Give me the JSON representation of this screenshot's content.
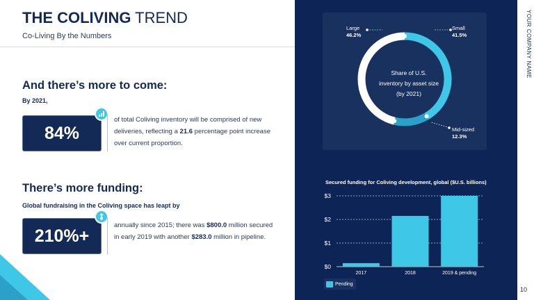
{
  "header": {
    "title_bold": "THE COLIVING",
    "title_light": " TREND",
    "subtitle": "Co-Living By the Numbers"
  },
  "company_name": "YOUR COMPANY NAME",
  "page_number": "10",
  "section1": {
    "heading": "And there’s more to come:",
    "lead": "By 2021,",
    "stat": "84%",
    "badge_icon": "bar-chart-icon",
    "text_before": "of total Coliving inventory will be comprised of new deliveries, reflecting a ",
    "highlight": "21.6",
    "text_after": " percentage point increase over current proportion."
  },
  "section2": {
    "heading": "There’s more funding:",
    "lead": "Global fundraising in the Coliving space has leapt by",
    "stat": "210%+",
    "badge_icon": "dollar-up-icon",
    "text_1": "annually since 2015; there was ",
    "highlight_1": "$800.0",
    "text_2": " million secured in early 2019 with another ",
    "highlight_2": "$283.0",
    "text_3": " million in pipeline."
  },
  "colors": {
    "navy": "#132a56",
    "panel": "#0d2456",
    "card": "#19315f",
    "accent": "#3ec7e6",
    "accent_dark": "#2ba0c8"
  },
  "chart_data": [
    {
      "type": "pie",
      "title": "Share of U.S. inventory by asset size (by 2021)",
      "title_lines": [
        "Share of U.S.",
        "inventory by asset size",
        "(by 2021)"
      ],
      "slices": [
        {
          "name": "Small",
          "pct_label": "41.5%",
          "value": 41.5
        },
        {
          "name": "Mid-sized",
          "pct_label": "12.3%",
          "value": 12.3
        },
        {
          "name": "Large",
          "pct_label": "46.2%",
          "value": 46.2
        }
      ]
    },
    {
      "type": "bar",
      "title": "Secured funding for Coliving development, global ($U.S. billions)",
      "categories": [
        "2017",
        "2018",
        "2019 & pending"
      ],
      "values": [
        0.15,
        2.15,
        3.0
      ],
      "ylim": [
        0,
        3
      ],
      "yticks": [
        0,
        1,
        2,
        3
      ],
      "ytick_labels": [
        "$0",
        "$1",
        "$2",
        "$3"
      ],
      "grid": true,
      "legend": [
        {
          "name": "Pending"
        }
      ],
      "legend_position": "bottom-left"
    }
  ]
}
